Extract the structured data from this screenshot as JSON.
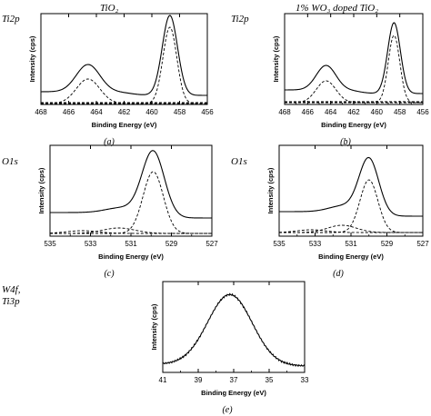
{
  "figure": {
    "titles": {
      "left": "TiO₂",
      "right": "1% WO₃ doped TiO₂"
    },
    "row_labels": {
      "ti2p": "Ti2p",
      "o1s": "O1s",
      "w4f_line1": "W4f,",
      "w4f_line2": "Ti3p"
    }
  },
  "chart_data": [
    {
      "type": "line",
      "caption": "(a)",
      "row_label": "Ti2p",
      "title": "TiO₂",
      "xlabel": "Binding Energy (eV)",
      "ylabel": "Intensity (cps)",
      "xlim": [
        468,
        456
      ],
      "x_reversed": true,
      "xticks": [
        468,
        466,
        464,
        462,
        460,
        458,
        456
      ],
      "yticks_shown": false,
      "series": [
        {
          "style": "solid",
          "peaks": [
            {
              "center": 464.6,
              "width": 0.85,
              "height": 0.3
            },
            {
              "center": 458.7,
              "width": 0.55,
              "height": 0.88
            }
          ],
          "baseline": 0.1,
          "step_center": 461.5,
          "step_height": 0.04
        },
        {
          "style": "dashed",
          "peaks": [
            {
              "center": 464.6,
              "width": 0.85,
              "height": 0.27
            }
          ],
          "baseline": 0.01
        },
        {
          "style": "dashed",
          "peaks": [
            {
              "center": 458.7,
              "width": 0.5,
              "height": 0.84
            }
          ],
          "baseline": 0.01
        },
        {
          "style": "dashed",
          "peaks": [],
          "baseline": 0.02
        }
      ]
    },
    {
      "type": "line",
      "caption": "(b)",
      "row_label": "Ti2p",
      "title": "1% WO₃ doped TiO₂",
      "xlabel": "Binding Energy (eV)",
      "ylabel": "Intensity (cps)",
      "xlim": [
        468,
        456
      ],
      "x_reversed": true,
      "xticks": [
        468,
        466,
        464,
        462,
        460,
        458,
        456
      ],
      "yticks_shown": false,
      "series": [
        {
          "style": "solid",
          "peaks": [
            {
              "center": 464.4,
              "width": 0.85,
              "height": 0.27
            },
            {
              "center": 458.5,
              "width": 0.55,
              "height": 0.78
            }
          ],
          "baseline": 0.12,
          "step_center": 461.5,
          "step_height": 0.04
        },
        {
          "style": "dashed",
          "peaks": [
            {
              "center": 464.4,
              "width": 0.85,
              "height": 0.24
            }
          ],
          "baseline": 0.02
        },
        {
          "style": "dashed",
          "peaks": [
            {
              "center": 458.5,
              "width": 0.5,
              "height": 0.74
            }
          ],
          "baseline": 0.02
        },
        {
          "style": "dashed",
          "peaks": [],
          "baseline": 0.03
        }
      ]
    },
    {
      "type": "line",
      "caption": "(c)",
      "row_label": "O1s",
      "xlabel": "Binding Energy (eV)",
      "ylabel": "Intensity (cps)",
      "xlim": [
        535,
        527
      ],
      "x_reversed": true,
      "xticks": [
        535,
        533,
        531,
        529,
        527
      ],
      "yticks_shown": false,
      "series": [
        {
          "style": "solid",
          "peaks": [
            {
              "center": 529.9,
              "width": 0.55,
              "height": 0.72
            },
            {
              "center": 531.4,
              "width": 0.8,
              "height": 0.06
            }
          ],
          "baseline": 0.2,
          "step_center": 530.6,
          "step_height": 0.06
        },
        {
          "style": "dashed",
          "peaks": [
            {
              "center": 529.9,
              "width": 0.5,
              "height": 0.68
            }
          ],
          "baseline": 0.03
        },
        {
          "style": "dashed",
          "peaks": [
            {
              "center": 531.6,
              "width": 0.8,
              "height": 0.06
            }
          ],
          "baseline": 0.03
        },
        {
          "style": "dashed",
          "peaks": [
            {
              "center": 533.4,
              "width": 0.8,
              "height": 0.03
            }
          ],
          "baseline": 0.03
        }
      ]
    },
    {
      "type": "line",
      "caption": "(d)",
      "row_label": "O1s",
      "xlabel": "Binding Energy (eV)",
      "ylabel": "Intensity (cps)",
      "xlim": [
        535,
        527
      ],
      "x_reversed": true,
      "xticks": [
        535,
        533,
        531,
        529,
        527
      ],
      "yticks_shown": false,
      "series": [
        {
          "style": "solid",
          "peaks": [
            {
              "center": 530.0,
              "width": 0.55,
              "height": 0.62
            },
            {
              "center": 531.4,
              "width": 0.8,
              "height": 0.07
            }
          ],
          "baseline": 0.22,
          "step_center": 530.7,
          "step_height": 0.05
        },
        {
          "style": "dashed",
          "peaks": [
            {
              "center": 530.0,
              "width": 0.5,
              "height": 0.58
            }
          ],
          "baseline": 0.04
        },
        {
          "style": "dashed",
          "peaks": [
            {
              "center": 531.5,
              "width": 0.8,
              "height": 0.08
            }
          ],
          "baseline": 0.04
        },
        {
          "style": "dashed",
          "peaks": [
            {
              "center": 533.2,
              "width": 0.8,
              "height": 0.03
            }
          ],
          "baseline": 0.04
        }
      ]
    },
    {
      "type": "line",
      "caption": "(e)",
      "row_label": "W4f, Ti3p",
      "xlabel": "Binding Energy (eV)",
      "ylabel": "Intensity (cps)",
      "xlim": [
        41,
        33
      ],
      "x_reversed": true,
      "xticks": [
        41,
        39,
        37,
        35,
        33
      ],
      "yticks_shown": false,
      "series": [
        {
          "style": "solid",
          "peaks": [
            {
              "center": 37.2,
              "width": 1.25,
              "height": 0.78
            }
          ],
          "baseline": 0.07,
          "step_center": 37.5,
          "step_height": 0.02
        }
      ]
    }
  ]
}
